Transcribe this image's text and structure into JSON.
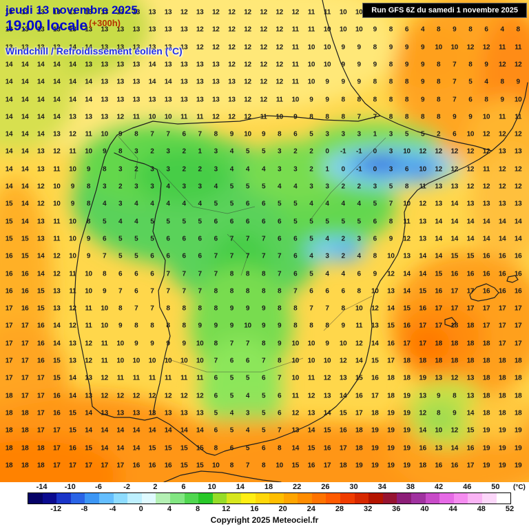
{
  "header": {
    "date_line": "jeudi 13 novembre 2025",
    "time_line": "19:00 locale",
    "offset_label": "(+300h)",
    "variable_label": "Windchill / Refroidissement éolien (°C)"
  },
  "run_box": {
    "label": "Run GFS 6Z du samedi 1 novembre 2025"
  },
  "footer": {
    "copyright": "Copyright 2025 Meteociel.fr",
    "unit": "(°C)"
  },
  "scale": {
    "top_ticks": [
      "-14",
      "-10",
      "-6",
      "-2",
      "2",
      "6",
      "10",
      "14",
      "18",
      "22",
      "26",
      "30",
      "34",
      "38",
      "42",
      "46",
      "50"
    ],
    "bottom_ticks": [
      "-12",
      "-8",
      "-4",
      "0",
      "4",
      "8",
      "12",
      "16",
      "20",
      "24",
      "28",
      "32",
      "36",
      "40",
      "44",
      "48",
      "52"
    ],
    "colors": [
      "#050266",
      "#0b0b8f",
      "#1a35c8",
      "#2a64e6",
      "#3c96f5",
      "#64beff",
      "#8edcff",
      "#bef0ff",
      "#e0faff",
      "#b4f0b4",
      "#82e682",
      "#50d750",
      "#28c828",
      "#96dc28",
      "#d7e61e",
      "#ffee14",
      "#ffd70a",
      "#ffbe00",
      "#ffa500",
      "#ff8c00",
      "#ff7300",
      "#ff5a00",
      "#f03c00",
      "#d72800",
      "#b41400",
      "#961432",
      "#8c1e78",
      "#a032a0",
      "#c84bc8",
      "#e66be6",
      "#f58cf0",
      "#fab4f5",
      "#fcd7fa",
      "#ffffff"
    ]
  },
  "map": {
    "palette": {
      "base_yellow": "#ffd74b",
      "pale_yellow": "#ffe878",
      "green_yellow": "#c8dc46",
      "green": "#5ad25a",
      "deep_green": "#46cd46",
      "cyan": "#78ccf5",
      "blue": "#1e50dc",
      "orange": "#ffa01e",
      "deep_orange": "#ff8200",
      "coast_line": "#1e1e1e"
    }
  },
  "grid": {
    "rows": [
      "13 13 13 13 13 13 13 13 13 13 13 12 13 12 12 12 12 12 12 11 11 10 10 10 9 9 8 8 7 6 6 8 12",
      "13 13 13 13 13 13 13 13 13 13 13 13 12 12 12 12 12 12 11 11 10 10 10 9 8 6 4 8 9 8 6 4 8",
      "13 13 13 13 14 14 13 13 13 13 13 13 12 12 12 12 12 12 11 10 10 9 9 8 9 9 9 10 10 12 12 11 11",
      "14 14 14 14 14 13 13 13 13 14 13 13 13 13 12 12 12 12 11 10 10 9 9 9 8 9 9 8 7 8 9 12 12",
      "14 14 14 14 14 14 13 13 13 14 14 13 13 13 13 12 12 12 11 10 9 9 9 8 8 8 9 8 7 5 4 8 9",
      "14 14 14 14 14 14 13 13 13 13 13 13 13 13 13 12 12 11 10 9 9 8 8 8 8 8 9 8 7 6 8 9 10",
      "14 14 14 14 13 13 13 12 11 10 10 11 11 12 12 12 11 10 9 8 8 8 7 7 8 8 8 8 9 9 10 11 11",
      "14 14 14 13 12 11 10 9 8 7 7 6 7 8 9 10 9 8 6 5 3 3 3 1 3 5 5 2 6 10 12 12 12",
      "14 14 13 12 11 10 9 8 3 2 3 2 1 3 4 5 5 3 2 2 0 -1 -1 0 3 10 12 12 12 12 12 13 13",
      "14 14 13 11 10 9 8 3 2 3 3 2 2 3 4 4 4 3 3 2 1 0 -1 0 3 6 10 12 12 12 11 12 12",
      "14 14 12 10 9 8 3 2 3 3 4 3 3 4 5 5 5 4 4 3 3 2 2 3 5 8 11 13 13 12 12 12 12",
      "15 14 12 10 9 8 4 3 4 4 4 4 4 5 5 6 6 5 5 4 4 4 4 5 7 10 12 13 14 13 13 13 13",
      "15 14 13 11 10 8 5 4 4 5 5 5 5 6 6 6 6 6 5 5 5 5 5 6 8 11 13 14 14 14 14 14 14",
      "15 15 13 11 10 9 6 5 5 5 6 6 6 6 7 7 7 6 6 5 4 2 3 6 9 12 13 14 14 14 14 14 14",
      "16 15 14 12 10 9 7 5 5 6 6 6 6 7 7 7 7 7 6 4 3 2 4 8 10 13 14 14 15 15 16 16 16",
      "16 16 14 12 11 10 8 6 6 6 7 7 7 7 8 8 8 7 6 5 4 4 6 9 12 14 14 15 16 16 16 16 16",
      "16 16 15 13 11 10 9 7 6 7 7 7 7 8 8 8 8 8 7 6 6 6 8 10 13 14 15 16 17 17 16 16 16",
      "17 16 15 13 12 11 10 8 7 7 8 8 8 8 9 9 9 8 8 7 7 8 10 12 14 15 16 17 17 17 17 17 17",
      "17 17 16 14 12 11 10 9 8 8 8 8 9 9 9 10 9 9 8 8 8 9 11 13 15 16 17 17 18 18 17 17 17",
      "17 17 16 14 13 12 11 10 9 9 9 9 10 8 7 7 8 9 10 10 9 10 12 14 16 17 17 18 18 18 18 17 17",
      "17 17 16 15 13 12 11 10 10 10 10 10 10 7 6 6 7 8 10 10 10 12 14 15 17 18 18 18 18 18 18 18 18",
      "17 17 17 15 14 13 12 11 11 11 11 11 11 6 5 5 6 7 10 11 12 13 15 16 18 18 19 13 12 13 18 18 18",
      "18 17 17 16 14 13 12 12 12 12 12 12 12 6 5 4 5 6 11 12 13 14 16 17 18 19 13 9 8 13 18 18 18",
      "18 18 17 16 15 14 13 13 13 13 13 13 13 5 4 3 5 6 12 13 14 15 17 18 19 19 12 8 9 14 18 18 18",
      "18 18 17 17 15 14 14 14 14 14 14 14 14 6 5 4 5 7 13 14 15 16 18 19 19 19 14 10 12 15 19 19 19",
      "18 18 18 17 16 15 14 14 14 15 15 15 15 8 6 5 6 8 14 15 16 17 18 19 19 19 16 13 14 16 19 19 19",
      "18 18 18 17 17 17 17 17 16 16 16 15 15 10 8 7 8 10 15 16 17 18 19 19 19 19 18 16 16 17 19 19 19"
    ]
  }
}
